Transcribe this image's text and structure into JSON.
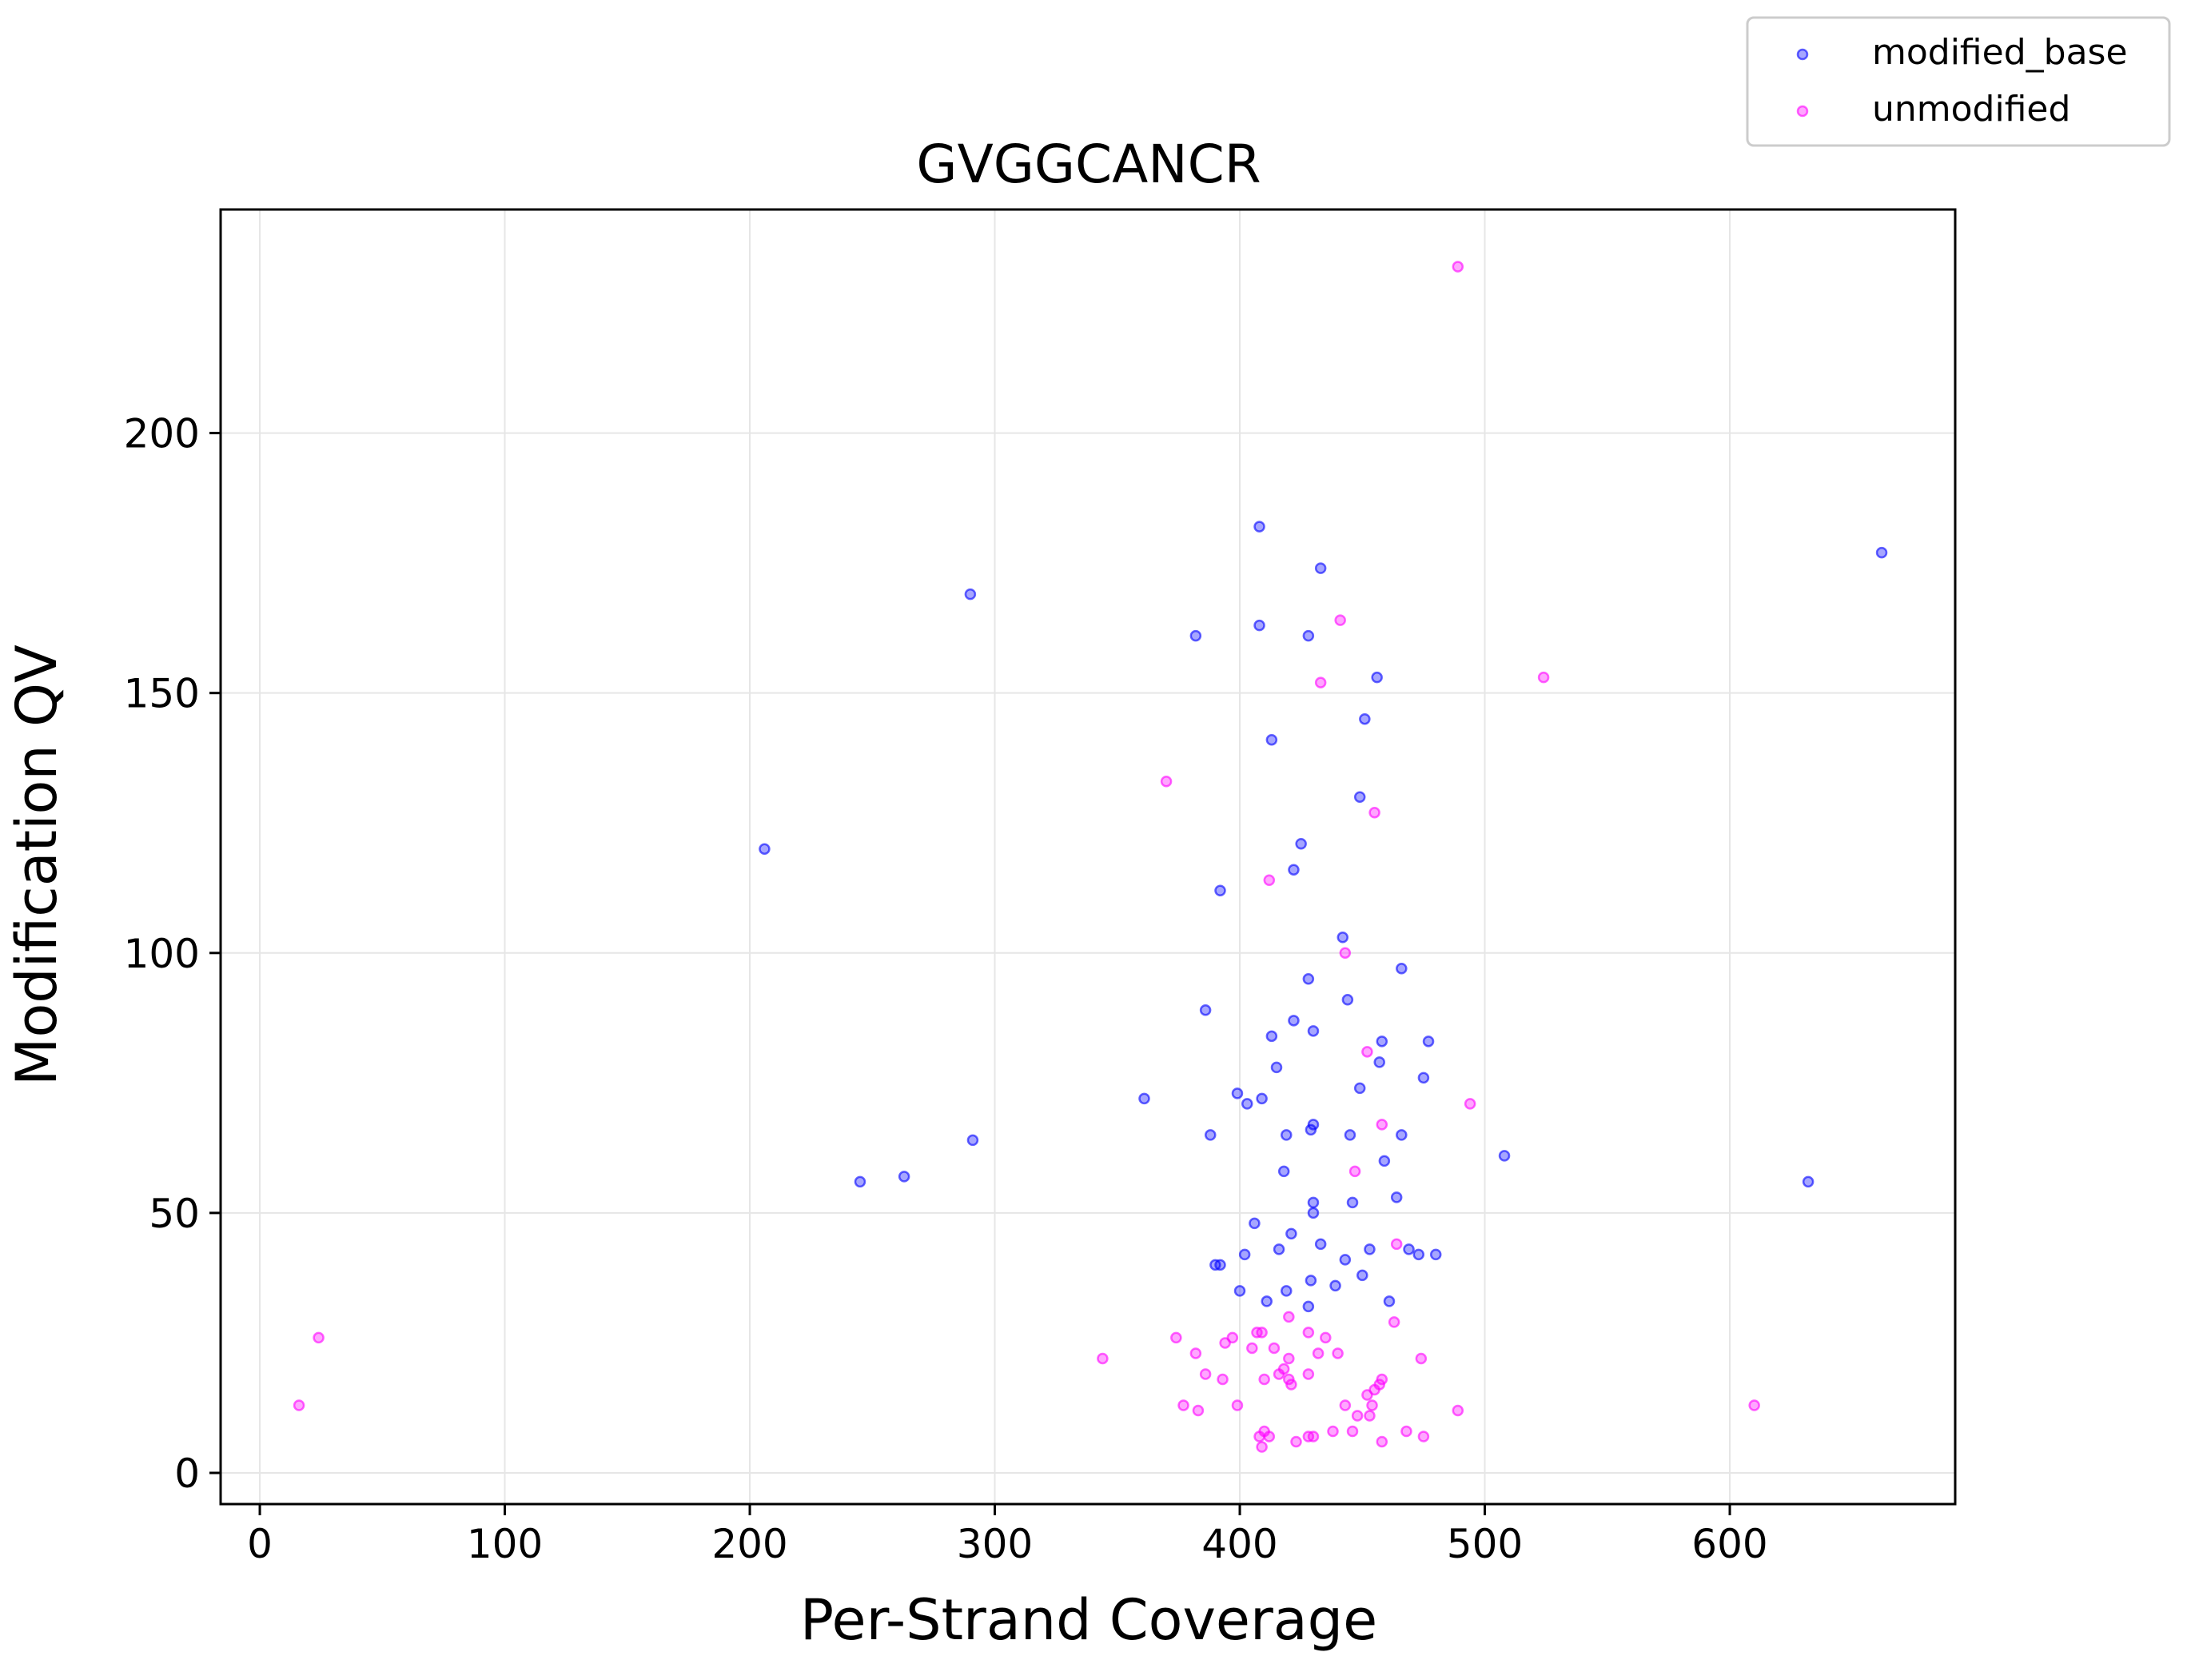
{
  "chart_data": {
    "type": "scatter",
    "title": "GVGGCANCR",
    "xlabel": "Per-Strand Coverage",
    "ylabel": "Modification QV",
    "xlim": [
      -16,
      692
    ],
    "ylim": [
      -6,
      243
    ],
    "xticks": [
      0,
      100,
      200,
      300,
      400,
      500,
      600
    ],
    "yticks": [
      0,
      50,
      100,
      150,
      200
    ],
    "grid": true,
    "legend_position": "top-right, outside plot",
    "series": [
      {
        "name": "modified_base",
        "color": "#0000ff",
        "points": [
          [
            408,
            182
          ],
          [
            433,
            174
          ],
          [
            662,
            177
          ],
          [
            290,
            169
          ],
          [
            408,
            163
          ],
          [
            382,
            161
          ],
          [
            428,
            161
          ],
          [
            456,
            153
          ],
          [
            413,
            141
          ],
          [
            451,
            145
          ],
          [
            449,
            130
          ],
          [
            206,
            120
          ],
          [
            425,
            121
          ],
          [
            422,
            116
          ],
          [
            392,
            112
          ],
          [
            442,
            103
          ],
          [
            466,
            97
          ],
          [
            428,
            95
          ],
          [
            444,
            91
          ],
          [
            386,
            89
          ],
          [
            422,
            87
          ],
          [
            413,
            84
          ],
          [
            430,
            85
          ],
          [
            458,
            83
          ],
          [
            477,
            83
          ],
          [
            415,
            78
          ],
          [
            457,
            79
          ],
          [
            361,
            72
          ],
          [
            409,
            72
          ],
          [
            399,
            73
          ],
          [
            403,
            71
          ],
          [
            449,
            74
          ],
          [
            475,
            76
          ],
          [
            430,
            67
          ],
          [
            291,
            64
          ],
          [
            388,
            65
          ],
          [
            419,
            65
          ],
          [
            445,
            65
          ],
          [
            466,
            65
          ],
          [
            429,
            66
          ],
          [
            459,
            60
          ],
          [
            508,
            61
          ],
          [
            418,
            58
          ],
          [
            245,
            56
          ],
          [
            263,
            57
          ],
          [
            632,
            56
          ],
          [
            430,
            52
          ],
          [
            446,
            52
          ],
          [
            464,
            53
          ],
          [
            430,
            50
          ],
          [
            406,
            48
          ],
          [
            421,
            46
          ],
          [
            433,
            44
          ],
          [
            469,
            43
          ],
          [
            453,
            43
          ],
          [
            416,
            43
          ],
          [
            473,
            42
          ],
          [
            480,
            42
          ],
          [
            402,
            42
          ],
          [
            390,
            40
          ],
          [
            392,
            40
          ],
          [
            443,
            41
          ],
          [
            450,
            38
          ],
          [
            439,
            36
          ],
          [
            429,
            37
          ],
          [
            400,
            35
          ],
          [
            419,
            35
          ],
          [
            411,
            33
          ],
          [
            461,
            33
          ],
          [
            428,
            32
          ]
        ]
      },
      {
        "name": "unmodified",
        "color": "#ff00ff",
        "points": [
          [
            489,
            232
          ],
          [
            441,
            164
          ],
          [
            433,
            152
          ],
          [
            524,
            153
          ],
          [
            370,
            133
          ],
          [
            455,
            127
          ],
          [
            412,
            114
          ],
          [
            443,
            100
          ],
          [
            452,
            81
          ],
          [
            494,
            71
          ],
          [
            458,
            67
          ],
          [
            447,
            58
          ],
          [
            464,
            44
          ],
          [
            420,
            30
          ],
          [
            463,
            29
          ],
          [
            24,
            26
          ],
          [
            374,
            26
          ],
          [
            397,
            26
          ],
          [
            407,
            27
          ],
          [
            428,
            27
          ],
          [
            435,
            26
          ],
          [
            409,
            27
          ],
          [
            394,
            25
          ],
          [
            405,
            24
          ],
          [
            414,
            24
          ],
          [
            432,
            23
          ],
          [
            440,
            23
          ],
          [
            382,
            23
          ],
          [
            474,
            22
          ],
          [
            344,
            22
          ],
          [
            420,
            22
          ],
          [
            418,
            20
          ],
          [
            416,
            19
          ],
          [
            428,
            19
          ],
          [
            386,
            19
          ],
          [
            393,
            18
          ],
          [
            420,
            18
          ],
          [
            458,
            18
          ],
          [
            410,
            18
          ],
          [
            421,
            17
          ],
          [
            457,
            17
          ],
          [
            455,
            16
          ],
          [
            452,
            15
          ],
          [
            16,
            13
          ],
          [
            377,
            13
          ],
          [
            399,
            13
          ],
          [
            443,
            13
          ],
          [
            454,
            13
          ],
          [
            610,
            13
          ],
          [
            383,
            12
          ],
          [
            489,
            12
          ],
          [
            448,
            11
          ],
          [
            453,
            11
          ],
          [
            410,
            8
          ],
          [
            438,
            8
          ],
          [
            446,
            8
          ],
          [
            468,
            8
          ],
          [
            408,
            7
          ],
          [
            412,
            7
          ],
          [
            428,
            7
          ],
          [
            430,
            7
          ],
          [
            475,
            7
          ],
          [
            423,
            6
          ],
          [
            458,
            6
          ],
          [
            409,
            5
          ]
        ]
      }
    ]
  }
}
